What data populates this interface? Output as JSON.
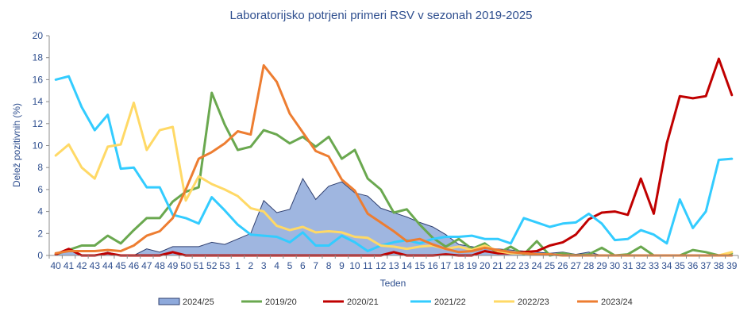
{
  "chart_data": {
    "type": "line",
    "title": "Laboratorijsko potrjeni primeri RSV v sezonah 2019-2025",
    "xlabel": "Teden",
    "ylabel": "Delež pozitivnih (%)",
    "ylim": [
      0,
      20
    ],
    "yticks": [
      "0",
      "2",
      "4",
      "6",
      "8",
      "10",
      "12",
      "14",
      "16",
      "18",
      "20"
    ],
    "grid": false,
    "legend": "bottom",
    "categories": [
      "40",
      "41",
      "42",
      "43",
      "44",
      "45",
      "46",
      "47",
      "48",
      "49",
      "50",
      "51",
      "52",
      "53",
      "1",
      "2",
      "3",
      "4",
      "5",
      "6",
      "7",
      "8",
      "9",
      "10",
      "11",
      "12",
      "13",
      "14",
      "15",
      "16",
      "17",
      "18",
      "19",
      "20",
      "21",
      "22",
      "23",
      "24",
      "25",
      "26",
      "27",
      "28",
      "29",
      "30",
      "31",
      "32",
      "33",
      "34",
      "35",
      "36",
      "37",
      "38",
      "39"
    ],
    "series": [
      {
        "name": "2024/25",
        "kind": "area",
        "color": "#8ea9db",
        "stroke": "#2f3f6f",
        "values": [
          0.2,
          0.5,
          0.0,
          0.0,
          0.3,
          0.0,
          0.0,
          0.6,
          0.3,
          0.8,
          0.8,
          0.8,
          1.2,
          1.0,
          1.5,
          2.0,
          5.0,
          3.9,
          4.2,
          7.0,
          5.1,
          6.3,
          6.7,
          5.7,
          5.4,
          4.3,
          3.9,
          3.5,
          3.0,
          2.6,
          1.9,
          1.0,
          0.8,
          0.6,
          0.6,
          0.5,
          0.4,
          0.3,
          0.2,
          0.3,
          0.1,
          0.3,
          0.0,
          0.0,
          0.0,
          0.0,
          0.0,
          0.0,
          null,
          null,
          null,
          null,
          null
        ]
      },
      {
        "name": "2019/20",
        "kind": "line",
        "color": "#6aa84f",
        "values": [
          0.1,
          0.5,
          0.9,
          0.9,
          1.8,
          1.1,
          2.3,
          3.4,
          3.4,
          4.9,
          5.8,
          6.2,
          14.8,
          11.9,
          9.6,
          9.9,
          11.4,
          11.0,
          10.2,
          10.8,
          9.9,
          10.8,
          8.8,
          9.6,
          7.0,
          6.0,
          3.9,
          4.2,
          2.8,
          1.6,
          0.8,
          1.5,
          0.6,
          1.1,
          0.2,
          0.8,
          0.1,
          1.3,
          0.0,
          0.2,
          0.0,
          0.1,
          0.7,
          0.0,
          0.1,
          0.8,
          0.0,
          0.0,
          0.0,
          0.5,
          0.3,
          0.0,
          0.2
        ]
      },
      {
        "name": "2020/21",
        "kind": "line",
        "color": "#c00000",
        "values": [
          0.1,
          0.6,
          0.0,
          0.0,
          0.2,
          0.0,
          0.0,
          0.0,
          0.0,
          0.3,
          0.0,
          0.0,
          0.0,
          0.0,
          0.0,
          0.0,
          0.0,
          0.0,
          0.0,
          0.0,
          0.0,
          0.0,
          0.0,
          0.0,
          0.0,
          0.0,
          0.3,
          0.0,
          0.0,
          0.0,
          0.1,
          0.0,
          0.0,
          0.4,
          0.2,
          0.2,
          0.3,
          0.4,
          0.9,
          1.2,
          1.9,
          3.3,
          3.9,
          4.0,
          3.7,
          7.0,
          3.8,
          10.2,
          14.5,
          14.3,
          14.5,
          17.9,
          14.6
        ]
      },
      {
        "name": "2021/22",
        "kind": "line",
        "color": "#33ccff",
        "values": [
          16.0,
          16.3,
          13.5,
          11.4,
          12.8,
          7.9,
          8.0,
          6.2,
          6.2,
          3.7,
          3.4,
          2.9,
          5.3,
          4.1,
          2.8,
          1.9,
          1.8,
          1.7,
          1.2,
          2.1,
          0.9,
          0.9,
          1.8,
          1.2,
          0.4,
          0.9,
          1.2,
          1.4,
          1.1,
          1.5,
          1.7,
          1.7,
          1.8,
          1.5,
          1.5,
          1.1,
          3.4,
          3.0,
          2.6,
          2.9,
          3.0,
          3.8,
          2.9,
          1.4,
          1.5,
          2.3,
          1.9,
          1.1,
          5.1,
          2.5,
          4.0,
          8.7,
          8.8
        ]
      },
      {
        "name": "2022/23",
        "kind": "line",
        "color": "#ffd966",
        "values": [
          9.1,
          10.1,
          8.0,
          7.0,
          9.9,
          10.1,
          13.9,
          9.6,
          11.4,
          11.7,
          5.0,
          7.2,
          6.5,
          6.0,
          5.4,
          4.3,
          4.0,
          2.7,
          2.3,
          2.6,
          2.1,
          2.2,
          2.1,
          1.7,
          1.6,
          0.9,
          0.8,
          0.6,
          0.8,
          0.9,
          0.6,
          0.8,
          0.5,
          0.9,
          0.4,
          0.2,
          0.2,
          0.1,
          0.1,
          0.0,
          0.0,
          0.0,
          0.0,
          0.0,
          0.0,
          0.0,
          0.0,
          0.0,
          0.0,
          0.0,
          0.0,
          0.0,
          0.3
        ]
      },
      {
        "name": "2023/24",
        "kind": "line",
        "color": "#ed7d31",
        "values": [
          0.2,
          0.4,
          0.4,
          0.4,
          0.5,
          0.4,
          0.9,
          1.8,
          2.2,
          3.4,
          6.0,
          8.8,
          9.4,
          10.2,
          11.3,
          11.0,
          17.3,
          15.8,
          12.9,
          11.2,
          9.5,
          9.0,
          6.9,
          5.9,
          3.8,
          3.0,
          2.2,
          1.3,
          1.5,
          1.0,
          0.6,
          0.3,
          0.4,
          0.7,
          0.5,
          0.3,
          0.2,
          0.1,
          0.1,
          0.0,
          0.0,
          0.0,
          0.0,
          0.0,
          0.0,
          0.0,
          0.0,
          0.0,
          0.0,
          0.0,
          0.0,
          0.0,
          0.0
        ]
      }
    ]
  }
}
